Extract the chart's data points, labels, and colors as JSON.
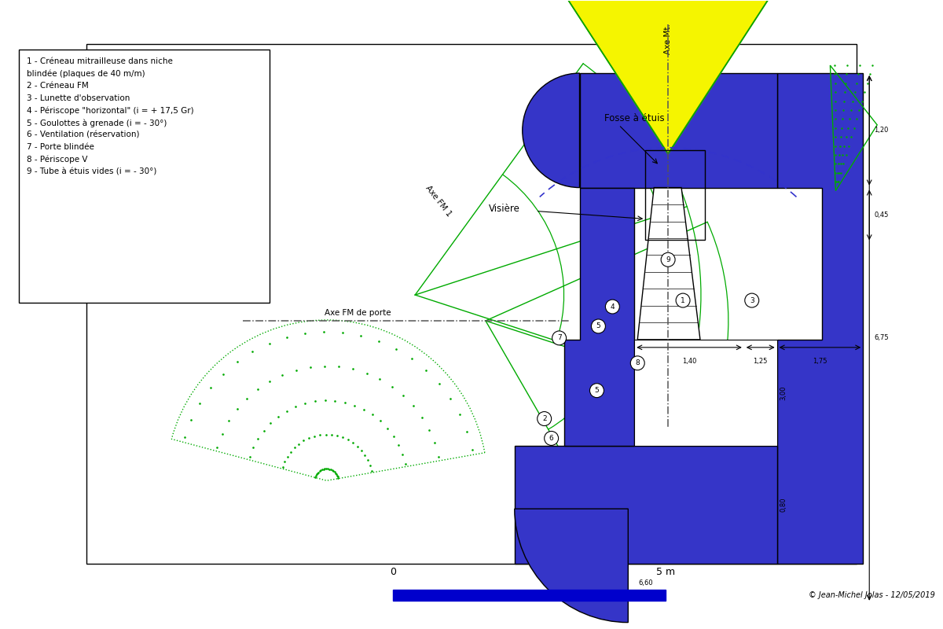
{
  "legend_lines": [
    "1 - Créneau mitrailleuse dans niche",
    "blindée (plaques de 40 m/m)",
    "2 - Créneau FM",
    "3 - Lunette d'observation",
    "4 - Périscope \"horizontal\" (i = + 17,5 Gr)",
    "5 - Goulottes à grenade (i = - 30°)",
    "6 - Ventilation (réservation)",
    "7 - Porte blindée",
    "8 - Périscope V",
    "9 - Tube à étuis vides (i = - 30°)"
  ],
  "colors": {
    "blue": "#3535c8",
    "yellow": "#f5f500",
    "green_line": "#00aa00",
    "white": "#ffffff",
    "black": "#000000",
    "dark_navy": "#1a1a8c"
  },
  "scale_bar": {
    "label_0": "0",
    "label_5m": "5 m",
    "color": "#0000cc"
  },
  "copyright": "© Jean-Michel Jolas - 12/05/2019",
  "labels": {
    "fosse_etuis": "Fosse à étuis",
    "visiere": "Visière",
    "axe_mt": "Axe Mt.",
    "axe_fm1": "Axe FM 1",
    "axe_fm_porte": "Axe FM de porte"
  },
  "dimensions": {
    "d_120": "1,20",
    "d_045": "0,45",
    "d_675": "6,75",
    "d_140": "1,40",
    "d_125": "1,25",
    "d_175": "1,75",
    "d_300": "3,00",
    "d_080": "0,80",
    "d_660": "6,60"
  }
}
